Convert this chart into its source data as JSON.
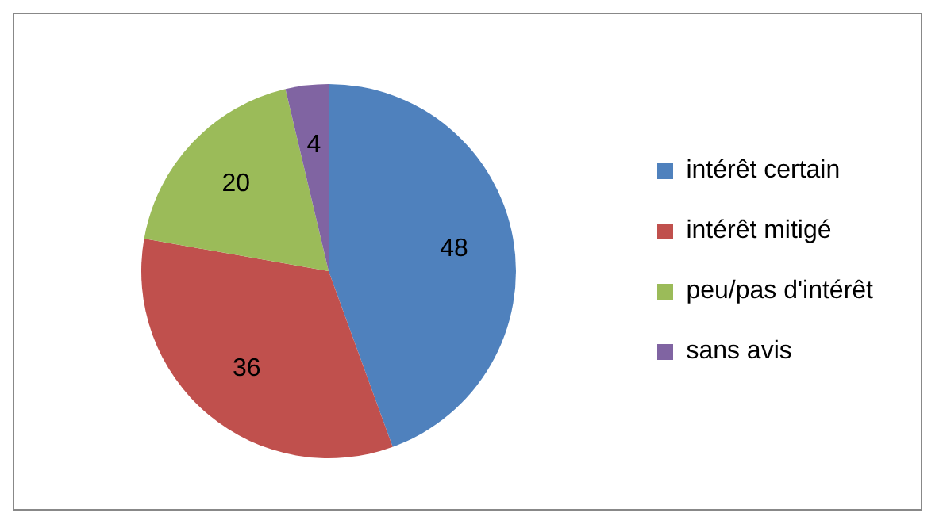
{
  "chart_data": {
    "type": "pie",
    "categories": [
      "intérêt certain",
      "intérêt mitigé",
      "peu/pas d'intérêt",
      "sans avis"
    ],
    "values": [
      48,
      36,
      20,
      4
    ],
    "colors": [
      "#4f81bd",
      "#c0504d",
      "#9bbb59",
      "#8064a2"
    ],
    "data_labels": true,
    "legend": "right"
  }
}
